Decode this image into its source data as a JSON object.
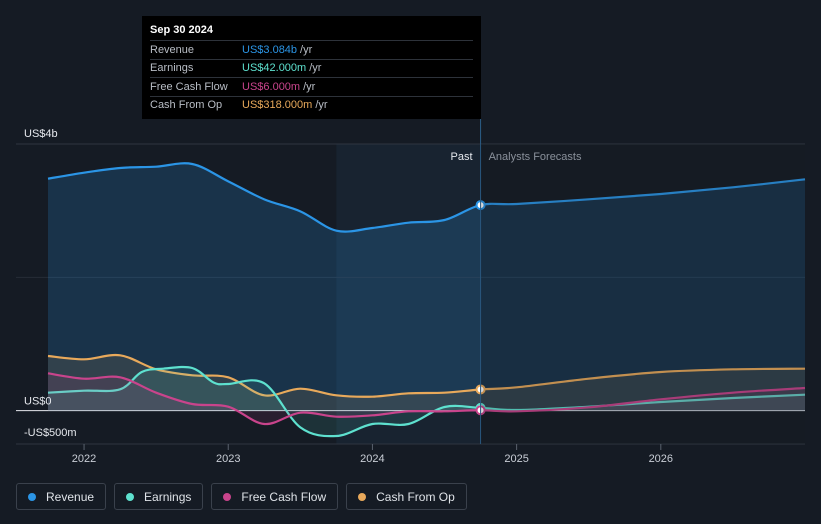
{
  "chart_data": {
    "type": "area",
    "y_axis": {
      "min": -500,
      "max": 4000,
      "ticks": [
        {
          "v": 4000,
          "label": "US$4b"
        },
        {
          "v": 0,
          "label": "US$0"
        },
        {
          "v": -500,
          "label": "-US$500m"
        }
      ]
    },
    "x_axis": {
      "min": 2021.75,
      "max": 2027.0,
      "ticks": [
        {
          "v": 2022,
          "label": "2022"
        },
        {
          "v": 2023,
          "label": "2023"
        },
        {
          "v": 2024,
          "label": "2024"
        },
        {
          "v": 2025,
          "label": "2025"
        },
        {
          "v": 2026,
          "label": "2026"
        }
      ]
    },
    "divider_x": 2024.75,
    "highlight_start": 2023.75,
    "period_labels": {
      "past": "Past",
      "forecast": "Analysts Forecasts"
    },
    "series": [
      {
        "name": "Revenue",
        "color": "#2b95e6",
        "x": [
          2021.75,
          2022.0,
          2022.25,
          2022.5,
          2022.75,
          2023.0,
          2023.25,
          2023.5,
          2023.75,
          2024.0,
          2024.25,
          2024.5,
          2024.75,
          2025.0,
          2025.5,
          2026.0,
          2026.5,
          2027.0
        ],
        "values": [
          3480,
          3570,
          3640,
          3660,
          3700,
          3440,
          3170,
          2990,
          2700,
          2740,
          2820,
          2860,
          3084,
          3100,
          3170,
          3250,
          3350,
          3470
        ]
      },
      {
        "name": "Cash From Op",
        "color": "#e8a95b",
        "x": [
          2021.75,
          2022.0,
          2022.25,
          2022.5,
          2022.75,
          2023.0,
          2023.25,
          2023.5,
          2023.75,
          2024.0,
          2024.25,
          2024.5,
          2024.75,
          2025.0,
          2025.5,
          2026.0,
          2026.5,
          2027.0
        ],
        "values": [
          820,
          770,
          830,
          620,
          530,
          500,
          230,
          330,
          230,
          210,
          260,
          270,
          318,
          350,
          480,
          580,
          620,
          630
        ]
      },
      {
        "name": "Earnings",
        "color": "#5ee1cf",
        "x": [
          2021.75,
          2022.0,
          2022.25,
          2022.4,
          2022.55,
          2022.75,
          2022.9,
          2023.0,
          2023.25,
          2023.5,
          2023.75,
          2024.0,
          2024.25,
          2024.5,
          2024.75,
          2025.0,
          2025.5,
          2026.0,
          2026.5,
          2027.0
        ],
        "values": [
          270,
          300,
          320,
          580,
          630,
          640,
          420,
          400,
          410,
          -250,
          -380,
          -200,
          -200,
          55,
          42,
          10,
          60,
          130,
          190,
          240
        ]
      },
      {
        "name": "Free Cash Flow",
        "color": "#c9448c",
        "x": [
          2021.75,
          2022.0,
          2022.25,
          2022.5,
          2022.75,
          2023.0,
          2023.25,
          2023.5,
          2023.75,
          2024.0,
          2024.25,
          2024.5,
          2024.75,
          2025.0,
          2025.5,
          2026.0,
          2026.5,
          2027.0
        ],
        "values": [
          560,
          480,
          500,
          270,
          100,
          60,
          -200,
          -30,
          -90,
          -70,
          -10,
          -10,
          6,
          -10,
          50,
          170,
          270,
          340
        ]
      }
    ],
    "tooltip": {
      "date": "Sep 30 2024",
      "rows": [
        {
          "label": "Revenue",
          "value": "US$3.084b",
          "unit": "/yr",
          "color": "#2b95e6"
        },
        {
          "label": "Earnings",
          "value": "US$42.000m",
          "unit": "/yr",
          "color": "#5ee1cf"
        },
        {
          "label": "Free Cash Flow",
          "value": "US$6.000m",
          "unit": "/yr",
          "color": "#c9448c"
        },
        {
          "label": "Cash From Op",
          "value": "US$318.000m",
          "unit": "/yr",
          "color": "#e8a95b"
        }
      ]
    },
    "legend": [
      {
        "name": "Revenue",
        "color": "#2b95e6"
      },
      {
        "name": "Earnings",
        "color": "#5ee1cf"
      },
      {
        "name": "Free Cash Flow",
        "color": "#c9448c"
      },
      {
        "name": "Cash From Op",
        "color": "#e8a95b"
      }
    ]
  }
}
